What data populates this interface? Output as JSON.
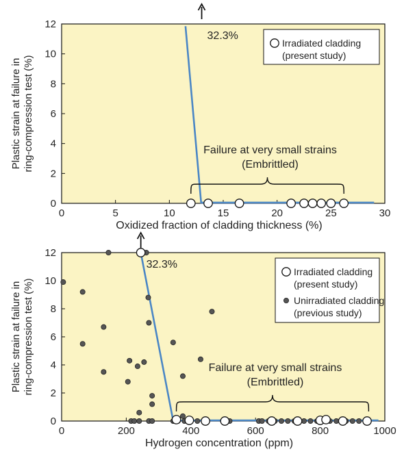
{
  "chart_data": [
    {
      "type": "scatter",
      "xlabel": "Oxidized fraction of cladding thickness (%)",
      "ylabel_line1": "Plastic strain at failure in",
      "ylabel_line2": "ring-compression test (%)",
      "xlim": [
        0,
        30
      ],
      "ylim": [
        0,
        12
      ],
      "xticks": [
        "0",
        "5",
        "10",
        "15",
        "20",
        "25",
        "30"
      ],
      "yticks": [
        "0",
        "2",
        "4",
        "6",
        "8",
        "10",
        "12"
      ],
      "background": "#fbf4c4",
      "line_color": "#4a86c5",
      "legend_position": "top-right",
      "legend": [
        {
          "marker": "open-circle",
          "line1": "Irradiated cladding",
          "line2": "(present study)"
        }
      ],
      "annotation_value": "32.3%",
      "annotation_point": {
        "x": 13.0,
        "y": 12
      },
      "brace_label_line1": "Failure at very small strains",
      "brace_label_line2": "(Embrittled)",
      "brace_range": [
        12.0,
        26.2
      ],
      "trend_line": [
        {
          "x": 11.5,
          "y": 11.85
        },
        {
          "x": 12.95,
          "y": 0.05
        },
        {
          "x": 29.0,
          "y": 0.05
        }
      ],
      "series": [
        {
          "marker": "open-circle",
          "points": [
            {
              "x": 12.0,
              "y": 0
            },
            {
              "x": 13.6,
              "y": 0
            },
            {
              "x": 16.5,
              "y": 0
            },
            {
              "x": 21.3,
              "y": 0
            },
            {
              "x": 22.5,
              "y": 0
            },
            {
              "x": 23.3,
              "y": 0
            },
            {
              "x": 24.1,
              "y": 0
            },
            {
              "x": 25.0,
              "y": 0
            },
            {
              "x": 26.2,
              "y": 0
            }
          ]
        }
      ]
    },
    {
      "type": "scatter",
      "xlabel": "Hydrogen concentration (ppm)",
      "ylabel_line1": "Plastic strain at failure in",
      "ylabel_line2": "ring-compression test (%)",
      "xlim": [
        0,
        1000
      ],
      "ylim": [
        0,
        12
      ],
      "xticks": [
        "0",
        "200",
        "400",
        "600",
        "800",
        "1000"
      ],
      "yticks": [
        "0",
        "2",
        "4",
        "6",
        "8",
        "10",
        "12"
      ],
      "background": "#fbf4c4",
      "line_color": "#4a86c5",
      "legend_position": "top-right",
      "legend": [
        {
          "marker": "open-circle",
          "line1": "Irradiated cladding",
          "line2": "(present study)"
        },
        {
          "marker": "filled-circle",
          "line1": "Unirradiated cladding",
          "line2": "(previous study)"
        }
      ],
      "annotation_value": "32.3%",
      "annotation_point": {
        "x": 245,
        "y": 12
      },
      "brace_label_line1": "Failure at very small strains",
      "brace_label_line2": "(Embrittled)",
      "brace_range": [
        355,
        950
      ],
      "trend_line": [
        {
          "x": 245,
          "y": 12
        },
        {
          "x": 345,
          "y": 0.05
        },
        {
          "x": 980,
          "y": 0.05
        }
      ],
      "series": [
        {
          "marker": "open-circle",
          "points": [
            {
              "x": 245,
              "y": 12
            },
            {
              "x": 355,
              "y": 0.1
            },
            {
              "x": 395,
              "y": 0.05
            },
            {
              "x": 445,
              "y": 0
            },
            {
              "x": 505,
              "y": 0
            },
            {
              "x": 650,
              "y": 0
            },
            {
              "x": 730,
              "y": 0
            },
            {
              "x": 800,
              "y": 0.05
            },
            {
              "x": 818,
              "y": 0.1
            },
            {
              "x": 870,
              "y": 0
            },
            {
              "x": 945,
              "y": 0
            }
          ]
        },
        {
          "marker": "filled-circle",
          "points": [
            {
              "x": 5,
              "y": 9.9
            },
            {
              "x": 65,
              "y": 9.2
            },
            {
              "x": 65,
              "y": 5.5
            },
            {
              "x": 145,
              "y": 12
            },
            {
              "x": 130,
              "y": 6.7
            },
            {
              "x": 130,
              "y": 3.5
            },
            {
              "x": 205,
              "y": 2.8
            },
            {
              "x": 210,
              "y": 4.3
            },
            {
              "x": 235,
              "y": 3.9
            },
            {
              "x": 255,
              "y": 4.2
            },
            {
              "x": 262,
              "y": 12
            },
            {
              "x": 268,
              "y": 8.8
            },
            {
              "x": 270,
              "y": 7.0
            },
            {
              "x": 280,
              "y": 1.8
            },
            {
              "x": 280,
              "y": 1.2
            },
            {
              "x": 240,
              "y": 0.6
            },
            {
              "x": 345,
              "y": 5.6
            },
            {
              "x": 375,
              "y": 3.2
            },
            {
              "x": 430,
              "y": 4.4
            },
            {
              "x": 465,
              "y": 7.8
            },
            {
              "x": 375,
              "y": 0.35
            },
            {
              "x": 215,
              "y": 0
            },
            {
              "x": 225,
              "y": 0
            },
            {
              "x": 240,
              "y": 0
            },
            {
              "x": 270,
              "y": 0
            },
            {
              "x": 280,
              "y": 0
            },
            {
              "x": 345,
              "y": 0
            },
            {
              "x": 360,
              "y": 0
            },
            {
              "x": 380,
              "y": 0
            },
            {
              "x": 420,
              "y": 0
            },
            {
              "x": 520,
              "y": 0
            },
            {
              "x": 610,
              "y": 0
            },
            {
              "x": 620,
              "y": 0
            },
            {
              "x": 640,
              "y": 0
            },
            {
              "x": 660,
              "y": 0
            },
            {
              "x": 680,
              "y": 0
            },
            {
              "x": 700,
              "y": 0
            },
            {
              "x": 720,
              "y": 0
            },
            {
              "x": 750,
              "y": 0
            },
            {
              "x": 770,
              "y": 0
            },
            {
              "x": 790,
              "y": 0
            },
            {
              "x": 830,
              "y": 0
            },
            {
              "x": 850,
              "y": 0
            },
            {
              "x": 880,
              "y": 0
            },
            {
              "x": 900,
              "y": 0
            },
            {
              "x": 920,
              "y": 0
            }
          ]
        }
      ]
    }
  ]
}
